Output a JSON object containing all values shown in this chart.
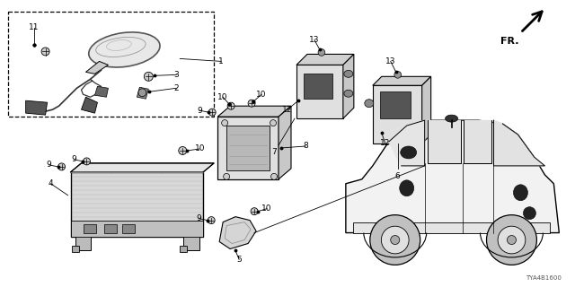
{
  "bg_color": "#ffffff",
  "fig_width": 6.4,
  "fig_height": 3.2,
  "dpi": 100,
  "diagram_code": "TYA4B1600",
  "label_fontsize": 6.5,
  "small_fontsize": 5.5
}
